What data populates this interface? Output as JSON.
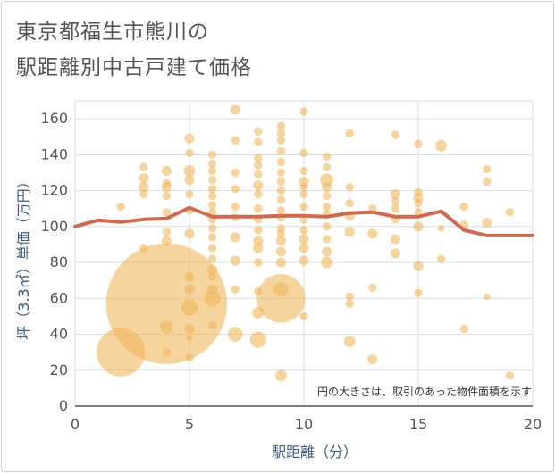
{
  "title_line1": "東京都福生市熊川の",
  "title_line2": "駅距離別中古戸建て価格",
  "chart_data": {
    "type": "scatter",
    "xlabel": "駅距離（分）",
    "ylabel": "坪（3.3㎡）単価（万円）",
    "xlim": [
      0,
      20
    ],
    "ylim": [
      0,
      170
    ],
    "x_ticks": [
      0,
      5,
      10,
      15,
      20
    ],
    "y_ticks": [
      0,
      20,
      40,
      60,
      80,
      100,
      120,
      140,
      160
    ],
    "grid": true,
    "note": "円の大きさは、取引のあった物件面積を示す",
    "colors": {
      "bubble": "#f0b85c",
      "line": "#cf6a4f",
      "grid": "#d6dde8",
      "axis_text": "#555555",
      "axis_label": "#3d5a80"
    },
    "points": [
      [
        2,
        30,
        3
      ],
      [
        2,
        111,
        0.5
      ],
      [
        3,
        88,
        0.5
      ],
      [
        3,
        122,
        0.6
      ],
      [
        3,
        127,
        0.6
      ],
      [
        3,
        133,
        0.5
      ],
      [
        3,
        118,
        0.5
      ],
      [
        4,
        57,
        7.5
      ],
      [
        4,
        44,
        0.8
      ],
      [
        4,
        30,
        0.5
      ],
      [
        4,
        92,
        0.6
      ],
      [
        4,
        97,
        0.5
      ],
      [
        4,
        108,
        0.5
      ],
      [
        4,
        117,
        0.5
      ],
      [
        4,
        122,
        0.6
      ],
      [
        4,
        131,
        0.6
      ],
      [
        4,
        124,
        0.5
      ],
      [
        5,
        27,
        0.5
      ],
      [
        5,
        38,
        0.4
      ],
      [
        5,
        43,
        0.6
      ],
      [
        5,
        55,
        1.0
      ],
      [
        5,
        65,
        0.6
      ],
      [
        5,
        72,
        0.6
      ],
      [
        5,
        96,
        0.6
      ],
      [
        5,
        109,
        0.5
      ],
      [
        5,
        118,
        0.5
      ],
      [
        5,
        126,
        0.6
      ],
      [
        5,
        131,
        0.7
      ],
      [
        5,
        141,
        0.5
      ],
      [
        5,
        149,
        0.6
      ],
      [
        6,
        45,
        0.5
      ],
      [
        6,
        60,
        1.0
      ],
      [
        6,
        65,
        0.6
      ],
      [
        6,
        72,
        0.5
      ],
      [
        6,
        76,
        0.6
      ],
      [
        6,
        82,
        0.5
      ],
      [
        6,
        88,
        0.5
      ],
      [
        6,
        94,
        0.5
      ],
      [
        6,
        99,
        0.5
      ],
      [
        6,
        104,
        0.5
      ],
      [
        6,
        108,
        0.5
      ],
      [
        6,
        112,
        0.5
      ],
      [
        6,
        117,
        0.5
      ],
      [
        6,
        121,
        0.5
      ],
      [
        6,
        126,
        0.5
      ],
      [
        6,
        131,
        0.5
      ],
      [
        6,
        135,
        0.5
      ],
      [
        6,
        140,
        0.5
      ],
      [
        7,
        40,
        0.9
      ],
      [
        7,
        65,
        0.5
      ],
      [
        7,
        81,
        0.6
      ],
      [
        7,
        94,
        0.6
      ],
      [
        7,
        105,
        0.5
      ],
      [
        7,
        111,
        0.5
      ],
      [
        7,
        121,
        0.5
      ],
      [
        7,
        130,
        0.5
      ],
      [
        7,
        148,
        0.5
      ],
      [
        7,
        165,
        0.6
      ],
      [
        8,
        37,
        1.0
      ],
      [
        8,
        52,
        0.7
      ],
      [
        8,
        64,
        0.5
      ],
      [
        8,
        80,
        0.5
      ],
      [
        8,
        88,
        0.6
      ],
      [
        8,
        92,
        0.6
      ],
      [
        8,
        98,
        0.5
      ],
      [
        8,
        104,
        0.5
      ],
      [
        8,
        110,
        0.5
      ],
      [
        8,
        118,
        0.5
      ],
      [
        8,
        123,
        0.6
      ],
      [
        8,
        129,
        0.5
      ],
      [
        8,
        134,
        0.5
      ],
      [
        8,
        138,
        0.5
      ],
      [
        8,
        147,
        0.5
      ],
      [
        8,
        153,
        0.5
      ],
      [
        9,
        60,
        3.0
      ],
      [
        9,
        65,
        0.9
      ],
      [
        9,
        17,
        0.7
      ],
      [
        9,
        80,
        0.6
      ],
      [
        9,
        86,
        0.6
      ],
      [
        9,
        92,
        0.6
      ],
      [
        9,
        96,
        0.5
      ],
      [
        9,
        99,
        0.5
      ],
      [
        9,
        105,
        0.5
      ],
      [
        9,
        109,
        0.5
      ],
      [
        9,
        115,
        0.5
      ],
      [
        9,
        120,
        0.5
      ],
      [
        9,
        125,
        0.5
      ],
      [
        9,
        130,
        0.5
      ],
      [
        9,
        136,
        0.5
      ],
      [
        9,
        142,
        0.5
      ],
      [
        9,
        148,
        0.5
      ],
      [
        9,
        152,
        0.5
      ],
      [
        9,
        156,
        0.5
      ],
      [
        10,
        50,
        0.5
      ],
      [
        10,
        81,
        0.6
      ],
      [
        10,
        88,
        0.6
      ],
      [
        10,
        93,
        0.6
      ],
      [
        10,
        98,
        0.5
      ],
      [
        10,
        104,
        0.5
      ],
      [
        10,
        111,
        0.5
      ],
      [
        10,
        118,
        0.5
      ],
      [
        10,
        122,
        0.5
      ],
      [
        10,
        125,
        0.6
      ],
      [
        10,
        131,
        0.5
      ],
      [
        10,
        141,
        0.5
      ],
      [
        10,
        164,
        0.5
      ],
      [
        11,
        80,
        0.7
      ],
      [
        11,
        86,
        0.6
      ],
      [
        11,
        93,
        0.5
      ],
      [
        11,
        100,
        0.5
      ],
      [
        11,
        107,
        0.5
      ],
      [
        11,
        111,
        0.5
      ],
      [
        11,
        117,
        0.5
      ],
      [
        11,
        122,
        0.6
      ],
      [
        11,
        126,
        0.8
      ],
      [
        11,
        133,
        0.5
      ],
      [
        11,
        139,
        0.5
      ],
      [
        12,
        36,
        0.7
      ],
      [
        12,
        57,
        0.5
      ],
      [
        12,
        61,
        0.5
      ],
      [
        12,
        97,
        0.6
      ],
      [
        12,
        106,
        0.6
      ],
      [
        12,
        113,
        0.5
      ],
      [
        12,
        122,
        0.5
      ],
      [
        12,
        152,
        0.5
      ],
      [
        13,
        26,
        0.6
      ],
      [
        13,
        66,
        0.5
      ],
      [
        13,
        96,
        0.6
      ],
      [
        13,
        110,
        0.5
      ],
      [
        14,
        85,
        0.6
      ],
      [
        14,
        93,
        0.6
      ],
      [
        14,
        104,
        0.5
      ],
      [
        14,
        110,
        0.5
      ],
      [
        14,
        114,
        0.5
      ],
      [
        14,
        118,
        0.6
      ],
      [
        14,
        151,
        0.5
      ],
      [
        15,
        63,
        0.5
      ],
      [
        15,
        78,
        0.6
      ],
      [
        15,
        100,
        0.6
      ],
      [
        15,
        108,
        0.5
      ],
      [
        15,
        113,
        0.5
      ],
      [
        15,
        116,
        0.6
      ],
      [
        15,
        119,
        0.5
      ],
      [
        15,
        146,
        0.5
      ],
      [
        16,
        82,
        0.5
      ],
      [
        16,
        99,
        0.4
      ],
      [
        16,
        145,
        0.7
      ],
      [
        17,
        43,
        0.5
      ],
      [
        17,
        101,
        0.5
      ],
      [
        17,
        111,
        0.5
      ],
      [
        18,
        61,
        0.4
      ],
      [
        18,
        102,
        0.6
      ],
      [
        18,
        125,
        0.5
      ],
      [
        18,
        132,
        0.5
      ],
      [
        19,
        17,
        0.5
      ],
      [
        19,
        108,
        0.5
      ]
    ],
    "line": [
      [
        0,
        100
      ],
      [
        1,
        103.5
      ],
      [
        2,
        102.5
      ],
      [
        3,
        104
      ],
      [
        4,
        104.5
      ],
      [
        5,
        110.5
      ],
      [
        6,
        105.5
      ],
      [
        7,
        105.5
      ],
      [
        8,
        105.5
      ],
      [
        9,
        106
      ],
      [
        10,
        106
      ],
      [
        11,
        105.5
      ],
      [
        12,
        107.5
      ],
      [
        13,
        108
      ],
      [
        14,
        105.5
      ],
      [
        15,
        105.5
      ],
      [
        16,
        108.5
      ],
      [
        17,
        98
      ],
      [
        18,
        95
      ],
      [
        19,
        95
      ],
      [
        20,
        95
      ]
    ]
  }
}
